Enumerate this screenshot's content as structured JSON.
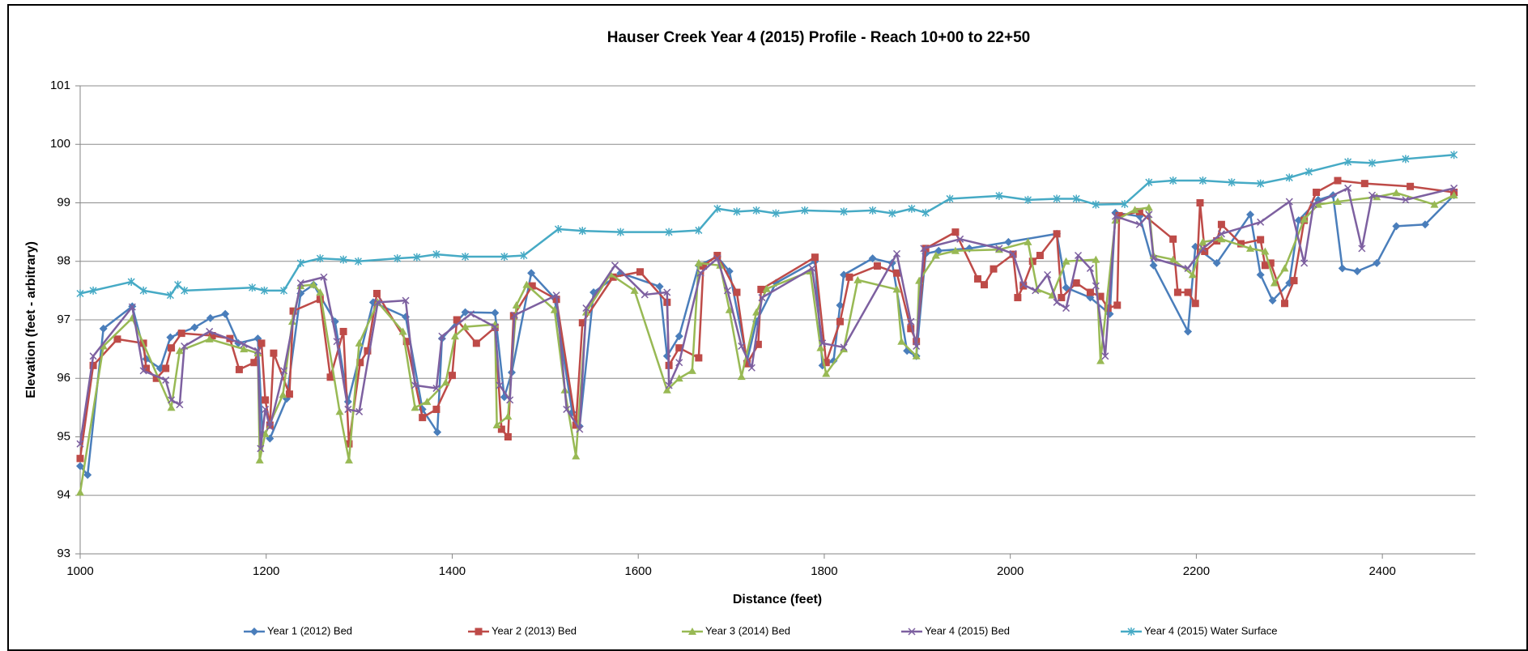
{
  "chart_data": {
    "type": "line",
    "title": "Hauser Creek Year 4 (2015) Profile - Reach 10+00 to 22+50",
    "x_label": "Distance (feet)",
    "y_label": "Elevation (feet - arbitrary)",
    "xlim": [
      1000,
      2500
    ],
    "xticks": [
      1000,
      1200,
      1400,
      1600,
      1800,
      2000,
      2200,
      2400
    ],
    "ylim": [
      93,
      101
    ],
    "yticks": [
      93,
      94,
      95,
      96,
      97,
      98,
      99,
      100,
      101
    ],
    "grid": true,
    "legend": "bottom",
    "series": [
      {
        "name": "Year 1 (2012) Bed",
        "color": "#4a7ebb",
        "marker": "diamond",
        "x": [
          1000,
          1008,
          1025,
          1056,
          1071,
          1086,
          1097,
          1107,
          1123,
          1140,
          1156,
          1170,
          1191,
          1196,
          1204,
          1222,
          1237,
          1251,
          1274,
          1288,
          1315,
          1350,
          1368,
          1384,
          1389,
          1414,
          1446,
          1456,
          1464,
          1485,
          1510,
          1529,
          1537,
          1552,
          1581,
          1623,
          1631,
          1644,
          1665,
          1685,
          1698,
          1717,
          1727,
          1748,
          1790,
          1798,
          1810,
          1817,
          1821,
          1852,
          1873,
          1889,
          1899,
          1909,
          1923,
          1956,
          1998,
          2050,
          2060,
          2086,
          2107,
          2113,
          2139,
          2154,
          2191,
          2199,
          2222,
          2258,
          2269,
          2282,
          2300,
          2310,
          2331,
          2347,
          2357,
          2373,
          2394,
          2415,
          2446,
          2477
        ],
        "values": [
          94.5,
          94.35,
          96.85,
          97.23,
          96.33,
          96.17,
          96.7,
          96.77,
          96.87,
          97.03,
          97.1,
          96.6,
          96.68,
          95.05,
          94.97,
          95.65,
          97.45,
          97.6,
          96.97,
          95.6,
          97.3,
          97.05,
          95.47,
          95.08,
          96.68,
          97.13,
          97.12,
          95.68,
          96.1,
          97.8,
          97.37,
          95.42,
          95.18,
          97.47,
          97.8,
          97.57,
          96.38,
          96.72,
          97.93,
          98.08,
          97.83,
          96.3,
          96.97,
          97.63,
          98.0,
          96.22,
          96.3,
          97.25,
          97.77,
          98.05,
          97.97,
          96.47,
          96.38,
          98.13,
          98.18,
          98.22,
          98.33,
          98.47,
          97.55,
          97.38,
          97.1,
          98.83,
          98.77,
          97.93,
          96.8,
          98.25,
          97.97,
          98.8,
          97.77,
          97.33,
          97.63,
          98.7,
          99.05,
          99.13,
          97.88,
          97.83,
          97.97,
          98.6,
          98.63,
          99.13
        ]
      },
      {
        "name": "Year 2 (2013) Bed",
        "color": "#be4b48",
        "marker": "square",
        "x": [
          1000,
          1014,
          1040,
          1068,
          1071,
          1082,
          1092,
          1098,
          1109,
          1142,
          1161,
          1171,
          1187,
          1195,
          1199,
          1204,
          1208,
          1225,
          1229,
          1258,
          1269,
          1283,
          1289,
          1301,
          1309,
          1319,
          1351,
          1368,
          1383,
          1400,
          1405,
          1426,
          1446,
          1453,
          1460,
          1466,
          1486,
          1512,
          1533,
          1540,
          1573,
          1602,
          1631,
          1633,
          1644,
          1665,
          1670,
          1685,
          1706,
          1717,
          1729,
          1732,
          1790,
          1802,
          1817,
          1827,
          1857,
          1878,
          1893,
          1899,
          1909,
          1941,
          1965,
          1972,
          1982,
          2003,
          2008,
          2014,
          2024,
          2032,
          2050,
          2055,
          2071,
          2086,
          2097,
          2105,
          2115,
          2117,
          2139,
          2175,
          2180,
          2191,
          2199,
          2204,
          2209,
          2222,
          2227,
          2248,
          2269,
          2274,
          2280,
          2295,
          2305,
          2316,
          2329,
          2352,
          2381,
          2430,
          2477
        ],
        "values": [
          94.63,
          96.22,
          96.67,
          96.6,
          96.17,
          96.0,
          96.17,
          96.52,
          96.77,
          96.73,
          96.68,
          96.15,
          96.27,
          96.6,
          95.63,
          95.2,
          96.43,
          95.73,
          97.15,
          97.35,
          96.02,
          96.8,
          94.88,
          96.27,
          96.47,
          97.45,
          96.63,
          95.33,
          95.47,
          96.05,
          97.0,
          96.6,
          96.87,
          95.13,
          95.0,
          97.07,
          97.58,
          97.35,
          95.2,
          96.95,
          97.73,
          97.82,
          97.3,
          96.22,
          96.52,
          96.35,
          97.92,
          98.1,
          97.47,
          96.25,
          96.58,
          97.52,
          98.07,
          96.27,
          96.97,
          97.73,
          97.92,
          97.8,
          96.85,
          96.63,
          98.22,
          98.5,
          97.7,
          97.6,
          97.87,
          98.12,
          97.38,
          97.58,
          98.0,
          98.1,
          98.47,
          97.38,
          97.63,
          97.47,
          97.4,
          97.2,
          97.25,
          98.78,
          98.85,
          98.38,
          97.47,
          97.47,
          97.28,
          99.0,
          98.17,
          98.35,
          98.63,
          98.3,
          98.37,
          97.93,
          97.97,
          97.28,
          97.67,
          98.7,
          99.18,
          99.38,
          99.33,
          99.28,
          99.18
        ]
      },
      {
        "name": "Year 3 (2014) Bed",
        "color": "#98b954",
        "marker": "triangle",
        "x": [
          1000,
          1025,
          1056,
          1098,
          1107,
          1139,
          1176,
          1191,
          1193,
          1199,
          1218,
          1228,
          1237,
          1251,
          1258,
          1279,
          1289,
          1300,
          1320,
          1347,
          1360,
          1373,
          1393,
          1403,
          1414,
          1446,
          1448,
          1460,
          1469,
          1480,
          1510,
          1521,
          1533,
          1544,
          1570,
          1596,
          1631,
          1644,
          1658,
          1665,
          1688,
          1698,
          1711,
          1727,
          1738,
          1785,
          1796,
          1802,
          1821,
          1836,
          1878,
          1883,
          1899,
          1902,
          1920,
          1941,
          1988,
          2019,
          2029,
          2045,
          2060,
          2092,
          2097,
          2113,
          2134,
          2149,
          2154,
          2175,
          2196,
          2207,
          2227,
          2258,
          2274,
          2284,
          2295,
          2316,
          2331,
          2352,
          2394,
          2415,
          2456,
          2477
        ],
        "values": [
          94.05,
          96.55,
          97.03,
          95.5,
          96.47,
          96.67,
          96.5,
          96.43,
          94.6,
          95.05,
          95.72,
          96.97,
          97.58,
          97.6,
          97.47,
          95.43,
          94.6,
          96.6,
          97.3,
          96.8,
          95.5,
          95.6,
          95.93,
          96.72,
          96.88,
          96.92,
          95.2,
          95.35,
          97.25,
          97.6,
          97.17,
          95.8,
          94.67,
          97.13,
          97.78,
          97.5,
          95.8,
          96.0,
          96.13,
          97.97,
          97.93,
          97.17,
          96.03,
          97.13,
          97.53,
          97.83,
          96.52,
          96.08,
          96.5,
          97.68,
          97.52,
          96.63,
          96.38,
          97.67,
          98.1,
          98.18,
          98.2,
          98.33,
          97.52,
          97.42,
          98.0,
          98.03,
          96.3,
          98.7,
          98.88,
          98.92,
          98.1,
          98.03,
          97.77,
          98.33,
          98.38,
          98.22,
          98.17,
          97.63,
          97.88,
          98.72,
          98.97,
          99.02,
          99.1,
          99.17,
          98.97,
          99.13
        ]
      },
      {
        "name": "Year 4 (2015) Bed",
        "color": "#7d60a0",
        "marker": "x",
        "x": [
          1000,
          1014,
          1056,
          1068,
          1092,
          1098,
          1107,
          1112,
          1139,
          1176,
          1191,
          1194,
          1199,
          1204,
          1219,
          1237,
          1262,
          1276,
          1288,
          1300,
          1320,
          1350,
          1360,
          1383,
          1389,
          1420,
          1446,
          1451,
          1462,
          1467,
          1512,
          1523,
          1537,
          1544,
          1575,
          1607,
          1631,
          1633,
          1644,
          1667,
          1685,
          1696,
          1711,
          1722,
          1733,
          1787,
          1798,
          1821,
          1878,
          1893,
          1899,
          1907,
          1946,
          1988,
          2003,
          2014,
          2027,
          2040,
          2050,
          2060,
          2073,
          2086,
          2092,
          2102,
          2113,
          2139,
          2149,
          2154,
          2191,
          2207,
          2227,
          2269,
          2300,
          2316,
          2326,
          2363,
          2378,
          2389,
          2425,
          2477
        ],
        "values": [
          94.88,
          96.38,
          97.22,
          96.13,
          95.97,
          95.63,
          95.55,
          96.55,
          96.8,
          96.58,
          96.47,
          94.8,
          95.47,
          95.17,
          96.13,
          97.63,
          97.73,
          96.63,
          95.47,
          95.43,
          97.3,
          97.33,
          95.88,
          95.83,
          96.72,
          97.1,
          96.88,
          95.88,
          95.63,
          97.08,
          97.42,
          95.47,
          95.13,
          97.2,
          97.93,
          97.43,
          97.47,
          95.88,
          96.27,
          97.8,
          98.05,
          97.5,
          96.55,
          96.18,
          97.38,
          97.88,
          96.6,
          96.53,
          98.13,
          96.97,
          96.55,
          98.22,
          98.38,
          98.22,
          98.13,
          97.6,
          97.5,
          97.77,
          97.3,
          97.2,
          98.1,
          97.88,
          97.58,
          96.38,
          98.77,
          98.63,
          98.8,
          98.05,
          97.88,
          98.22,
          98.47,
          98.67,
          99.02,
          97.97,
          98.97,
          99.25,
          98.22,
          99.13,
          99.05,
          99.25
        ]
      },
      {
        "name": "Year 4 (2015) Water Surface",
        "color": "#46aac5",
        "marker": "star",
        "x": [
          1000,
          1014,
          1055,
          1068,
          1097,
          1105,
          1112,
          1185,
          1198,
          1219,
          1237,
          1258,
          1283,
          1299,
          1341,
          1362,
          1383,
          1414,
          1456,
          1477,
          1514,
          1540,
          1581,
          1633,
          1665,
          1685,
          1706,
          1727,
          1748,
          1779,
          1821,
          1852,
          1873,
          1894,
          1909,
          1935,
          1988,
          2019,
          2050,
          2071,
          2092,
          2123,
          2149,
          2175,
          2207,
          2238,
          2269,
          2300,
          2321,
          2363,
          2389,
          2425,
          2477
        ],
        "values": [
          97.45,
          97.5,
          97.65,
          97.5,
          97.42,
          97.6,
          97.5,
          97.55,
          97.5,
          97.5,
          97.97,
          98.05,
          98.03,
          98.0,
          98.05,
          98.07,
          98.12,
          98.08,
          98.08,
          98.1,
          98.55,
          98.52,
          98.5,
          98.5,
          98.53,
          98.9,
          98.85,
          98.87,
          98.82,
          98.87,
          98.85,
          98.87,
          98.82,
          98.9,
          98.83,
          99.07,
          99.12,
          99.05,
          99.07,
          99.07,
          98.97,
          98.98,
          99.35,
          99.38,
          99.38,
          99.35,
          99.33,
          99.43,
          99.53,
          99.7,
          99.68,
          99.75,
          99.82
        ]
      }
    ]
  }
}
